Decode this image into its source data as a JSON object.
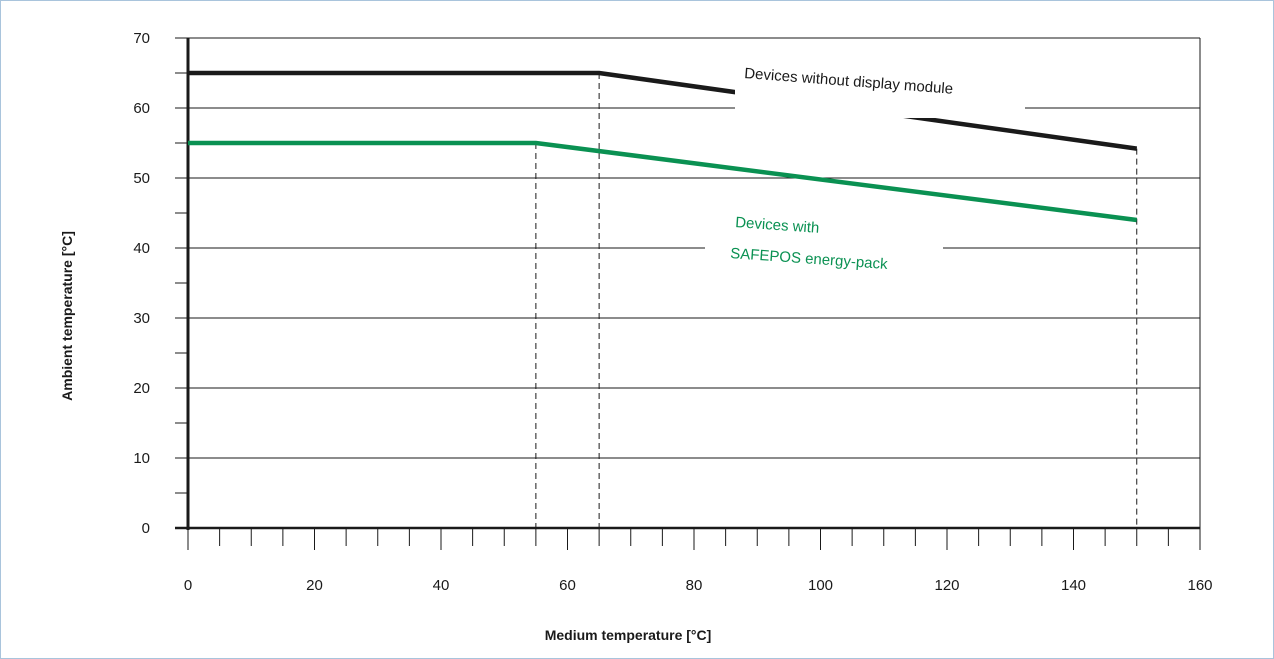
{
  "chart_data": {
    "type": "line",
    "title": "",
    "xlabel": "Medium temperature [°C]",
    "ylabel": "Ambient temperature [°C]",
    "xlim": [
      0,
      160
    ],
    "ylim": [
      0,
      70
    ],
    "x_ticks": [
      "0",
      "20",
      "40",
      "60",
      "80",
      "100",
      "120",
      "140",
      "160"
    ],
    "y_ticks": [
      "0",
      "10",
      "20",
      "30",
      "40",
      "50",
      "60",
      "70"
    ],
    "grid": "horizontal",
    "series": [
      {
        "color": "#1a1a1a",
        "x": [
          0,
          65,
          150
        ],
        "y": [
          65,
          65,
          54.2
        ]
      },
      {
        "color": "#0a9152",
        "x": [
          0,
          55,
          150
        ],
        "y": [
          55,
          55,
          44
        ]
      }
    ],
    "annotations": [
      {
        "text": "Devices without display module",
        "color": "#1a1a1a"
      },
      {
        "text": "Devices with",
        "color": "#0a9152"
      },
      {
        "text": "SAFEPOS energy-pack",
        "color": "#0a9152"
      }
    ],
    "reference_lines_x": [
      55,
      65,
      150
    ]
  }
}
